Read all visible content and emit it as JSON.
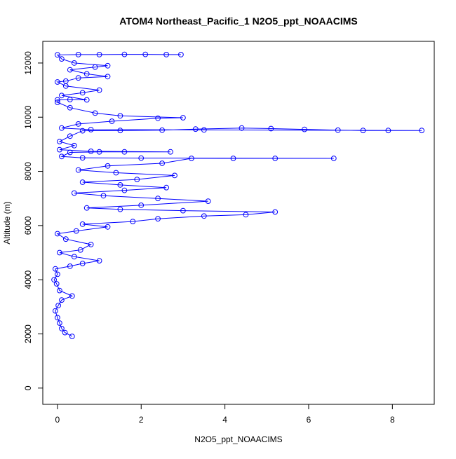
{
  "chart_data": {
    "type": "scatter",
    "title": "ATOM4 Northeast_Pacific_1 N2O5_ppt_NOAACIMS",
    "xlabel": "N2O5_ppt_NOAACIMS",
    "ylabel": "Altitude (m)",
    "xlim": [
      -0.35,
      9.0
    ],
    "ylim": [
      -600,
      12800
    ],
    "x_ticks": [
      0,
      2,
      4,
      6,
      8
    ],
    "y_ticks": [
      0,
      2000,
      4000,
      6000,
      8000,
      10000,
      12000
    ],
    "x_tick_labels": [
      "0",
      "2",
      "4",
      "6",
      "8"
    ],
    "y_tick_labels": [
      "0",
      "2000",
      "4000",
      "6000",
      "8000",
      "10000",
      "12000"
    ],
    "grid": false,
    "legend": "none",
    "marker": "open-circle",
    "connect_points": true,
    "series_color": "#0000ff",
    "series": [
      {
        "points": [
          {
            "x": 0.35,
            "y": 1910
          },
          {
            "x": 0.18,
            "y": 2050
          },
          {
            "x": 0.1,
            "y": 2200
          },
          {
            "x": 0.05,
            "y": 2400
          },
          {
            "x": 0.0,
            "y": 2600
          },
          {
            "x": -0.05,
            "y": 2850
          },
          {
            "x": 0.02,
            "y": 3050
          },
          {
            "x": 0.1,
            "y": 3250
          },
          {
            "x": 0.35,
            "y": 3400
          },
          {
            "x": 0.05,
            "y": 3600
          },
          {
            "x": -0.02,
            "y": 3850
          },
          {
            "x": -0.08,
            "y": 4000
          },
          {
            "x": 0.0,
            "y": 4200
          },
          {
            "x": -0.05,
            "y": 4400
          },
          {
            "x": 0.3,
            "y": 4500
          },
          {
            "x": 0.6,
            "y": 4600
          },
          {
            "x": 1.0,
            "y": 4700
          },
          {
            "x": 0.4,
            "y": 4850
          },
          {
            "x": 0.05,
            "y": 5000
          },
          {
            "x": 0.55,
            "y": 5100
          },
          {
            "x": 0.8,
            "y": 5300
          },
          {
            "x": 0.2,
            "y": 5500
          },
          {
            "x": 0.0,
            "y": 5700
          },
          {
            "x": 0.45,
            "y": 5800
          },
          {
            "x": 1.2,
            "y": 5950
          },
          {
            "x": 0.6,
            "y": 6050
          },
          {
            "x": 1.8,
            "y": 6150
          },
          {
            "x": 2.4,
            "y": 6250
          },
          {
            "x": 3.5,
            "y": 6350
          },
          {
            "x": 4.5,
            "y": 6400
          },
          {
            "x": 5.2,
            "y": 6500
          },
          {
            "x": 3.0,
            "y": 6550
          },
          {
            "x": 1.5,
            "y": 6600
          },
          {
            "x": 0.7,
            "y": 6650
          },
          {
            "x": 2.0,
            "y": 6750
          },
          {
            "x": 3.6,
            "y": 6900
          },
          {
            "x": 2.4,
            "y": 7000
          },
          {
            "x": 1.1,
            "y": 7100
          },
          {
            "x": 0.4,
            "y": 7200
          },
          {
            "x": 1.6,
            "y": 7300
          },
          {
            "x": 2.6,
            "y": 7400
          },
          {
            "x": 1.5,
            "y": 7500
          },
          {
            "x": 0.6,
            "y": 7600
          },
          {
            "x": 1.9,
            "y": 7700
          },
          {
            "x": 2.8,
            "y": 7850
          },
          {
            "x": 1.4,
            "y": 7950
          },
          {
            "x": 0.5,
            "y": 8050
          },
          {
            "x": 1.2,
            "y": 8200
          },
          {
            "x": 2.5,
            "y": 8300
          },
          {
            "x": 3.2,
            "y": 8480
          },
          {
            "x": 4.2,
            "y": 8480
          },
          {
            "x": 5.2,
            "y": 8480
          },
          {
            "x": 6.6,
            "y": 8480
          },
          {
            "x": 2.0,
            "y": 8490
          },
          {
            "x": 0.6,
            "y": 8500
          },
          {
            "x": 0.1,
            "y": 8550
          },
          {
            "x": 0.3,
            "y": 8700
          },
          {
            "x": 1.0,
            "y": 8720
          },
          {
            "x": 1.6,
            "y": 8720
          },
          {
            "x": 2.7,
            "y": 8720
          },
          {
            "x": 0.8,
            "y": 8740
          },
          {
            "x": 0.05,
            "y": 8800
          },
          {
            "x": 0.4,
            "y": 8950
          },
          {
            "x": 0.05,
            "y": 9100
          },
          {
            "x": 0.3,
            "y": 9300
          },
          {
            "x": 0.6,
            "y": 9500
          },
          {
            "x": 1.5,
            "y": 9510
          },
          {
            "x": 2.5,
            "y": 9520
          },
          {
            "x": 3.3,
            "y": 9560
          },
          {
            "x": 4.4,
            "y": 9600
          },
          {
            "x": 5.1,
            "y": 9580
          },
          {
            "x": 5.9,
            "y": 9550
          },
          {
            "x": 6.7,
            "y": 9520
          },
          {
            "x": 7.3,
            "y": 9510
          },
          {
            "x": 7.9,
            "y": 9510
          },
          {
            "x": 8.7,
            "y": 9510
          },
          {
            "x": 3.5,
            "y": 9530
          },
          {
            "x": 0.8,
            "y": 9540
          },
          {
            "x": 0.1,
            "y": 9600
          },
          {
            "x": 0.5,
            "y": 9750
          },
          {
            "x": 1.3,
            "y": 9850
          },
          {
            "x": 2.4,
            "y": 9960
          },
          {
            "x": 3.0,
            "y": 9980
          },
          {
            "x": 1.5,
            "y": 10050
          },
          {
            "x": 0.9,
            "y": 10150
          },
          {
            "x": 0.3,
            "y": 10350
          },
          {
            "x": 0.0,
            "y": 10550
          },
          {
            "x": 0.0,
            "y": 10640
          },
          {
            "x": 0.3,
            "y": 10650
          },
          {
            "x": 0.7,
            "y": 10640
          },
          {
            "x": 0.1,
            "y": 10800
          },
          {
            "x": 0.6,
            "y": 10900
          },
          {
            "x": 1.0,
            "y": 11000
          },
          {
            "x": 0.2,
            "y": 11150
          },
          {
            "x": 0.0,
            "y": 11300
          },
          {
            "x": 0.2,
            "y": 11330
          },
          {
            "x": 0.5,
            "y": 11450
          },
          {
            "x": 1.2,
            "y": 11500
          },
          {
            "x": 0.7,
            "y": 11600
          },
          {
            "x": 0.3,
            "y": 11750
          },
          {
            "x": 0.9,
            "y": 11850
          },
          {
            "x": 1.2,
            "y": 11900
          },
          {
            "x": 0.4,
            "y": 12000
          },
          {
            "x": 0.1,
            "y": 12150
          },
          {
            "x": 0.0,
            "y": 12300
          },
          {
            "x": 0.5,
            "y": 12310
          },
          {
            "x": 1.0,
            "y": 12310
          },
          {
            "x": 1.6,
            "y": 12320
          },
          {
            "x": 2.1,
            "y": 12320
          },
          {
            "x": 2.6,
            "y": 12310
          },
          {
            "x": 2.95,
            "y": 12310
          }
        ]
      }
    ]
  }
}
